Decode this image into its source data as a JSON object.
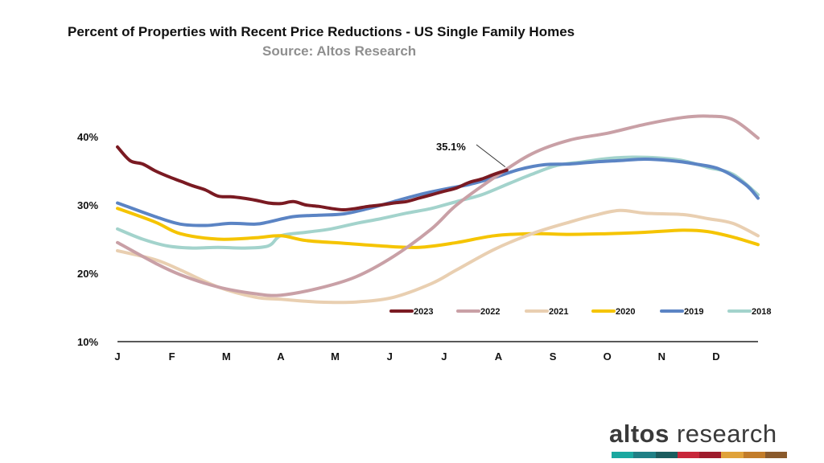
{
  "chart_data": {
    "type": "line",
    "title": "Percent of Properties with Recent Price Reductions - US Single Family Homes",
    "subtitle": "Source: Altos Research",
    "xlabel": "",
    "ylabel": "",
    "x_ticks": [
      "J",
      "F",
      "M",
      "A",
      "M",
      "J",
      "J",
      "A",
      "S",
      "O",
      "N",
      "D"
    ],
    "y_ticks": [
      "40%",
      "30%",
      "20%",
      "10%"
    ],
    "y_tick_values": [
      40,
      30,
      20,
      10
    ],
    "ylim": [
      10,
      40
    ],
    "xlim": [
      1,
      52
    ],
    "grid": false,
    "legend_position": "bottom-right, inside plot",
    "annotation": {
      "label": "35.1%",
      "series": "2023",
      "week": 32,
      "value": 35.1
    },
    "series": [
      {
        "name": "2023",
        "color": "#7a1a22",
        "weeks": [
          1,
          2,
          3,
          4,
          5,
          6,
          7,
          8,
          9,
          10,
          11,
          12,
          13,
          14,
          15,
          16,
          17,
          18,
          19,
          20,
          21,
          22,
          23,
          24,
          25,
          26,
          27,
          28,
          29,
          30,
          31,
          32
        ],
        "values": [
          38.5,
          36.5,
          36,
          35,
          34.2,
          33.5,
          32.8,
          32.2,
          31.3,
          31.2,
          31,
          30.7,
          30.3,
          30.2,
          30.5,
          30,
          29.8,
          29.5,
          29.3,
          29.5,
          29.8,
          30,
          30.3,
          30.5,
          31,
          31.5,
          32,
          32.5,
          33.3,
          33.8,
          34.5,
          35.1
        ]
      },
      {
        "name": "2022",
        "color": "#c9a0a6",
        "weeks": [
          1,
          4,
          6,
          9,
          12,
          14,
          17,
          20,
          23,
          26,
          28,
          31,
          34,
          37,
          40,
          43,
          46,
          48,
          50,
          52
        ],
        "values": [
          24.5,
          21.5,
          19.8,
          18,
          17,
          16.8,
          17.8,
          19.5,
          22.5,
          26.5,
          30,
          34,
          37.5,
          39.5,
          40.5,
          41.8,
          42.8,
          43,
          42.5,
          39.8
        ]
      },
      {
        "name": "2021",
        "color": "#e9cfb1",
        "weeks": [
          1,
          4,
          6,
          9,
          12,
          14,
          17,
          20,
          23,
          26,
          28,
          31,
          34,
          37,
          39,
          41,
          43,
          46,
          48,
          50,
          52
        ],
        "values": [
          23.3,
          22,
          20.5,
          18,
          16.5,
          16.2,
          15.8,
          15.8,
          16.5,
          18.5,
          20.5,
          23.5,
          25.8,
          27.5,
          28.5,
          29.2,
          28.8,
          28.6,
          28,
          27.3,
          25.5
        ]
      },
      {
        "name": "2020",
        "color": "#f5c400",
        "weeks": [
          1,
          4,
          6,
          9,
          12,
          14,
          16,
          19,
          22,
          25,
          28,
          31,
          34,
          37,
          40,
          43,
          46,
          48,
          50,
          52
        ],
        "values": [
          29.5,
          27.5,
          25.8,
          25,
          25.2,
          25.5,
          24.8,
          24.4,
          24,
          23.8,
          24.5,
          25.5,
          25.8,
          25.7,
          25.8,
          26,
          26.3,
          26.1,
          25.3,
          24.2
        ]
      },
      {
        "name": "2019",
        "color": "#5b84c4",
        "weeks": [
          1,
          4,
          6,
          8,
          10,
          12,
          13,
          15,
          17,
          19,
          21,
          23,
          25,
          27,
          29,
          31,
          33,
          35,
          37,
          39,
          41,
          43,
          45,
          47,
          49,
          51,
          52
        ],
        "values": [
          30.3,
          28.3,
          27.2,
          27,
          27.3,
          27.2,
          27.5,
          28.3,
          28.5,
          28.7,
          29.5,
          30.5,
          31.5,
          32.3,
          33,
          34,
          35.2,
          35.9,
          36,
          36.3,
          36.5,
          36.7,
          36.5,
          36,
          35.2,
          33,
          31
        ]
      },
      {
        "name": "2018",
        "color": "#a3d3cc",
        "weeks": [
          1,
          3,
          5,
          7,
          9,
          11,
          13,
          14,
          16,
          18,
          20,
          22,
          24,
          26,
          28,
          30,
          32,
          34,
          36,
          38,
          40,
          42,
          44,
          46,
          48,
          50,
          52
        ],
        "values": [
          26.5,
          25,
          24,
          23.7,
          23.8,
          23.7,
          24,
          25.5,
          26,
          26.5,
          27.3,
          28,
          28.8,
          29.5,
          30.5,
          31.5,
          33,
          34.5,
          35.8,
          36.3,
          36.8,
          37,
          36.9,
          36.5,
          35.5,
          34.5,
          31.5
        ]
      }
    ]
  },
  "brand": {
    "part1": "altos",
    "part2": " research"
  },
  "brand_colors": [
    "#1aa8a0",
    "#1f7f85",
    "#1b5c5e",
    "#c8273a",
    "#9e1c2c",
    "#e0a23a",
    "#c27c2a",
    "#8a5a2c"
  ]
}
